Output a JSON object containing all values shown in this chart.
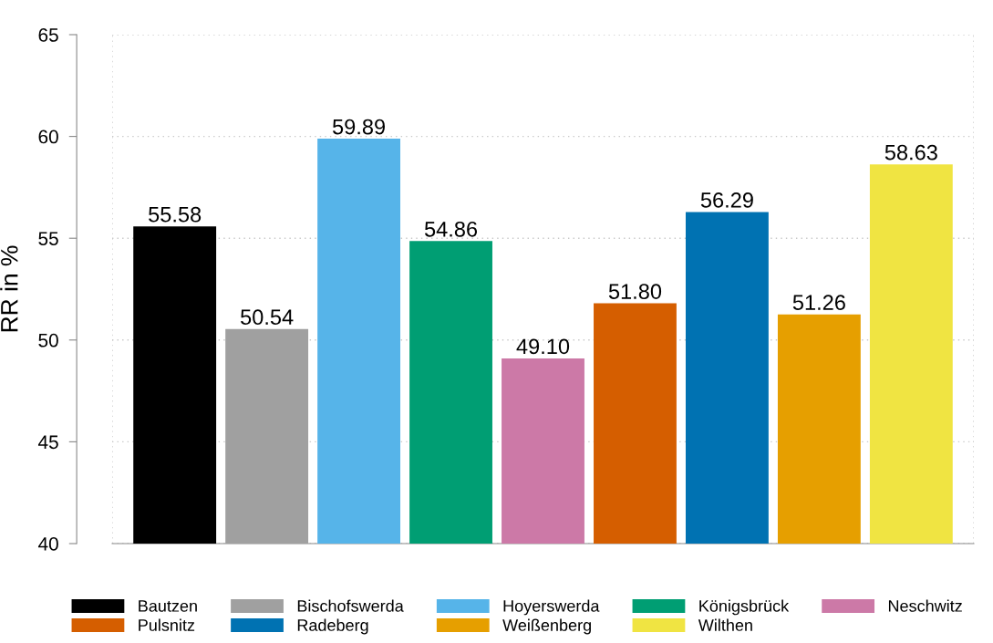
{
  "chart_data": {
    "type": "bar",
    "ylabel": "RR in %",
    "categories": [
      null,
      null,
      null,
      null,
      null,
      null,
      null,
      null,
      null
    ],
    "series": [
      {
        "name": "Bautzen",
        "color": "#000000",
        "values": [
          55.58,
          null,
          null,
          null,
          null,
          null,
          null,
          null,
          null
        ],
        "value_labels": [
          "55.58",
          null,
          null,
          null,
          null,
          null,
          null,
          null,
          null
        ]
      },
      {
        "name": "Bischofswerda",
        "color": "#a0a0a0",
        "values": [
          null,
          50.54,
          null,
          null,
          null,
          null,
          null,
          null,
          null
        ],
        "value_labels": [
          null,
          "50.54",
          null,
          null,
          null,
          null,
          null,
          null,
          null
        ]
      },
      {
        "name": "Hoyerswerda",
        "color": "#56b4e9",
        "values": [
          null,
          null,
          59.89,
          null,
          null,
          null,
          null,
          null,
          null
        ],
        "value_labels": [
          null,
          null,
          "59.89",
          null,
          null,
          null,
          null,
          null,
          null
        ]
      },
      {
        "name": "Königsbrück",
        "color": "#009e73",
        "values": [
          null,
          null,
          null,
          54.86,
          null,
          null,
          null,
          null,
          null
        ],
        "value_labels": [
          null,
          null,
          null,
          "54.86",
          null,
          null,
          null,
          null,
          null
        ]
      },
      {
        "name": "Neschwitz",
        "color": "#cc79a7",
        "values": [
          null,
          null,
          null,
          null,
          49.1,
          null,
          null,
          null,
          null
        ],
        "value_labels": [
          null,
          null,
          null,
          null,
          "49.10",
          null,
          null,
          null,
          null
        ]
      },
      {
        "name": "Pulsnitz",
        "color": "#d55e00",
        "values": [
          null,
          null,
          null,
          null,
          null,
          51.8,
          null,
          null,
          null
        ],
        "value_labels": [
          null,
          null,
          null,
          null,
          null,
          "51.80",
          null,
          null,
          null
        ]
      },
      {
        "name": "Radeberg",
        "color": "#0072b2",
        "values": [
          null,
          null,
          null,
          null,
          null,
          null,
          56.29,
          null,
          null
        ],
        "value_labels": [
          null,
          null,
          null,
          null,
          null,
          null,
          "56.29",
          null,
          null
        ]
      },
      {
        "name": "Weißenberg",
        "color": "#e69f00",
        "values": [
          null,
          null,
          null,
          null,
          null,
          null,
          null,
          51.26,
          null
        ],
        "value_labels": [
          null,
          null,
          null,
          null,
          null,
          null,
          null,
          "51.26",
          null
        ]
      },
      {
        "name": "Wilthen",
        "color": "#f0e442",
        "values": [
          null,
          null,
          null,
          null,
          null,
          null,
          null,
          null,
          58.63
        ],
        "value_labels": [
          null,
          null,
          null,
          null,
          null,
          null,
          null,
          null,
          "58.63"
        ]
      }
    ],
    "ylim": [
      40,
      65
    ],
    "yticks": [
      40,
      45,
      50,
      55,
      60,
      65
    ],
    "grid": "y",
    "legend": "bottom"
  }
}
